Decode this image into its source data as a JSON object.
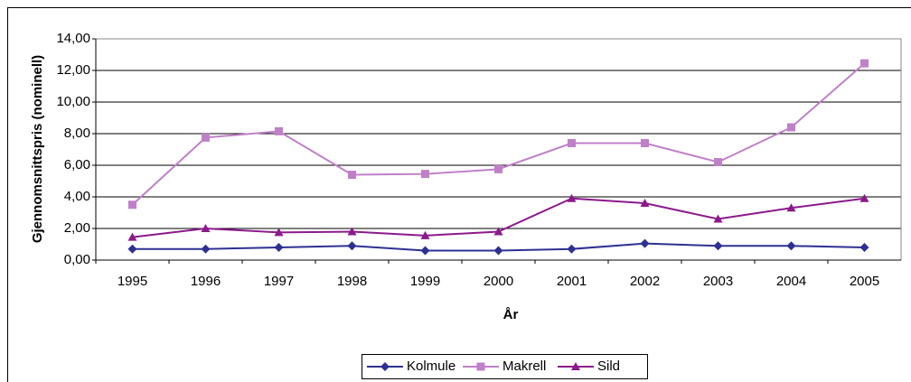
{
  "chart_data": {
    "type": "line",
    "x_label": "År",
    "y_label": "Gjennomsnittspris  (nominell)",
    "categories": [
      "1995",
      "1996",
      "1997",
      "1998",
      "1999",
      "2000",
      "2001",
      "2002",
      "2003",
      "2004",
      "2005"
    ],
    "series": [
      {
        "name": "Kolmule",
        "color": "#2e3192",
        "marker": "diamond",
        "values": [
          0.7,
          0.7,
          0.8,
          0.9,
          0.6,
          0.6,
          0.7,
          1.05,
          0.9,
          0.9,
          0.8
        ]
      },
      {
        "name": "Makrell",
        "color": "#c080c8",
        "marker": "square",
        "values": [
          3.5,
          7.75,
          8.15,
          5.4,
          5.45,
          5.75,
          7.4,
          7.4,
          6.2,
          8.4,
          12.45
        ]
      },
      {
        "name": "Sild",
        "color": "#8b1a8b",
        "marker": "triangle",
        "values": [
          1.45,
          2.0,
          1.75,
          1.8,
          1.55,
          1.8,
          3.9,
          3.6,
          2.6,
          3.3,
          3.9
        ]
      }
    ],
    "ylim": [
      0,
      14
    ],
    "yticks": [
      {
        "value": 0,
        "label": "0,00"
      },
      {
        "value": 2,
        "label": "2,00"
      },
      {
        "value": 4,
        "label": "4,00"
      },
      {
        "value": 6,
        "label": "6,00"
      },
      {
        "value": 8,
        "label": "8,00"
      },
      {
        "value": 10,
        "label": "10,00"
      },
      {
        "value": 12,
        "label": "12,00"
      },
      {
        "value": 14,
        "label": "14,00"
      }
    ],
    "grid": true,
    "legend": "bottom"
  }
}
